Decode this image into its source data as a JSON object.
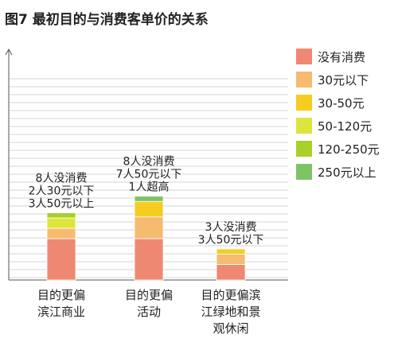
{
  "chart_data": {
    "type": "bar",
    "stacked": true,
    "title": "图7 最初目的与消费客单价的关系",
    "categories": [
      [
        "目的更偏",
        "滨江商业"
      ],
      [
        "目的更偏",
        "活动"
      ],
      [
        "目的更偏滨",
        "江绿地和景",
        "观休闲"
      ]
    ],
    "series": [
      {
        "name": "没有消费",
        "color": "#ee8872",
        "values": [
          8,
          8,
          3
        ]
      },
      {
        "name": "30元以下",
        "color": "#f6bb6f",
        "values": [
          2,
          4.2,
          2
        ]
      },
      {
        "name": "30-50元",
        "color": "#f7cc21",
        "values": [
          0,
          3.0,
          1
        ]
      },
      {
        "name": "50-120元",
        "color": "#dde53d",
        "values": [
          2,
          0,
          0
        ]
      },
      {
        "name": "120-250元",
        "color": "#a9cf2a",
        "values": [
          1,
          0,
          0
        ]
      },
      {
        "name": "250元以上",
        "color": "#7dc465",
        "values": [
          0,
          1,
          0
        ]
      }
    ],
    "annotations": [
      [
        "8人没消费",
        "2人30元以下",
        "3人50元以上"
      ],
      [
        "8人没消费",
        "7人50元以下",
        "1人超高"
      ],
      [
        "3人没消费",
        "3人50元以下"
      ]
    ],
    "grid": true,
    "legend_position": "right"
  }
}
